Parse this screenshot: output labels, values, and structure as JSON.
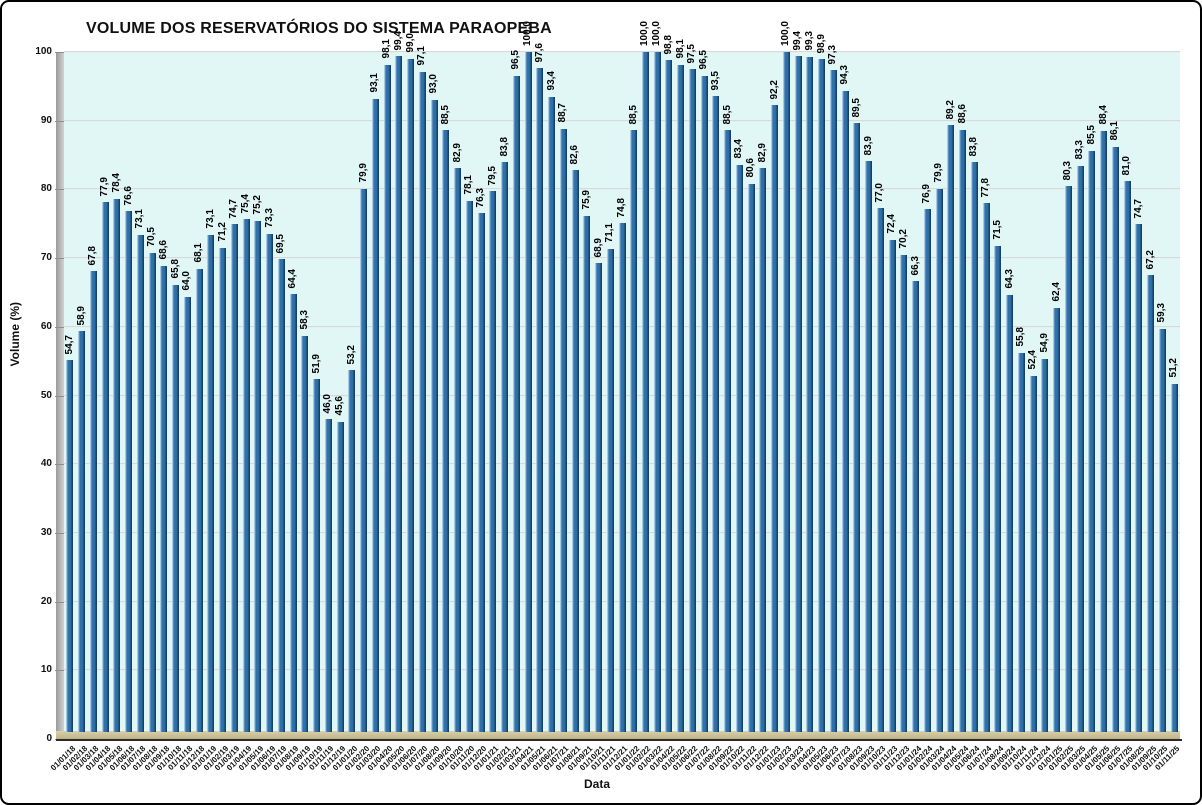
{
  "chart_data": {
    "type": "bar",
    "title": "VOLUME DOS RESERVATÓRIOS DO SISTEMA PARAOPEBA",
    "xlabel": "Data",
    "ylabel": "Volume (%)",
    "ylim": [
      0,
      100
    ],
    "yticks": [
      0,
      10,
      20,
      30,
      40,
      50,
      60,
      70,
      80,
      90,
      100
    ],
    "grid": true,
    "legend": "none",
    "decimal_separator": ",",
    "categories": [
      "01/01/18",
      "01/02/18",
      "01/03/18",
      "01/04/18",
      "01/05/18",
      "01/06/18",
      "01/07/18",
      "01/08/18",
      "01/09/18",
      "01/10/18",
      "01/11/18",
      "01/12/18",
      "01/01/19",
      "01/02/19",
      "01/03/19",
      "01/04/19",
      "01/05/19",
      "01/06/19",
      "01/07/19",
      "01/08/19",
      "01/09/19",
      "01/10/19",
      "01/11/19",
      "01/12/19",
      "01/01/20",
      "01/02/20",
      "01/03/20",
      "01/04/20",
      "01/05/20",
      "01/06/20",
      "01/07/20",
      "01/08/20",
      "01/09/20",
      "01/10/20",
      "01/11/20",
      "01/12/20",
      "01/01/21",
      "01/02/21",
      "01/03/21",
      "01/04/21",
      "01/05/21",
      "01/06/21",
      "01/07/21",
      "01/08/21",
      "01/09/21",
      "01/10/21",
      "01/11/21",
      "01/12/21",
      "01/01/22",
      "01/02/22",
      "01/03/22",
      "01/04/22",
      "01/05/22",
      "01/06/22",
      "01/07/22",
      "01/08/22",
      "01/09/22",
      "01/10/22",
      "01/11/22",
      "01/12/22",
      "01/01/23",
      "01/02/23",
      "01/03/23",
      "01/04/23",
      "01/05/23",
      "01/06/23",
      "01/07/23",
      "01/08/23",
      "01/09/23",
      "01/10/23",
      "01/11/23",
      "01/12/23",
      "01/01/24",
      "01/02/24",
      "01/03/24",
      "01/04/24",
      "01/05/24",
      "01/06/24",
      "01/07/24",
      "01/08/24",
      "01/09/24",
      "01/10/24",
      "01/11/24",
      "01/12/24",
      "01/01/25",
      "01/02/25",
      "01/03/25",
      "01/04/25",
      "01/05/25",
      "01/06/25",
      "01/07/25",
      "01/08/25",
      "01/09/25",
      "01/10/25",
      "01/11/25"
    ],
    "values": [
      54.7,
      58.9,
      67.8,
      77.9,
      78.4,
      76.6,
      73.1,
      70.5,
      68.6,
      65.8,
      64.0,
      68.1,
      73.1,
      71.2,
      74.7,
      75.4,
      75.2,
      73.3,
      69.5,
      64.4,
      58.3,
      51.9,
      46.0,
      45.6,
      53.2,
      79.9,
      93.1,
      98.1,
      99.4,
      99.0,
      97.1,
      93.0,
      88.5,
      82.9,
      78.1,
      76.3,
      79.5,
      83.8,
      96.5,
      100.0,
      97.6,
      93.4,
      88.7,
      82.6,
      75.9,
      68.9,
      71.1,
      74.8,
      88.5,
      100.0,
      100.0,
      98.8,
      98.1,
      97.5,
      96.5,
      93.5,
      88.5,
      83.4,
      80.6,
      82.9,
      92.2,
      100.0,
      99.4,
      99.3,
      98.9,
      97.3,
      94.3,
      89.5,
      83.9,
      77.0,
      72.4,
      70.2,
      66.3,
      76.9,
      79.9,
      89.2,
      88.6,
      83.8,
      77.8,
      71.5,
      64.3,
      55.8,
      52.4,
      54.9,
      62.4,
      80.3,
      83.3,
      85.5,
      88.4,
      86.1,
      81.0,
      74.7,
      67.2,
      59.3,
      51.2
    ],
    "colors": {
      "bar_body": "#2E70AA",
      "bar_highlight": "#8FB4D6",
      "bar_shadow": "#123A60",
      "plot_background": "#E1F7F6",
      "gridline": "#C8D1D0",
      "floor": "#C8BD95",
      "wall": "#BDBDBD",
      "axis_line": "#2B2B2B",
      "text": "#111111"
    }
  }
}
